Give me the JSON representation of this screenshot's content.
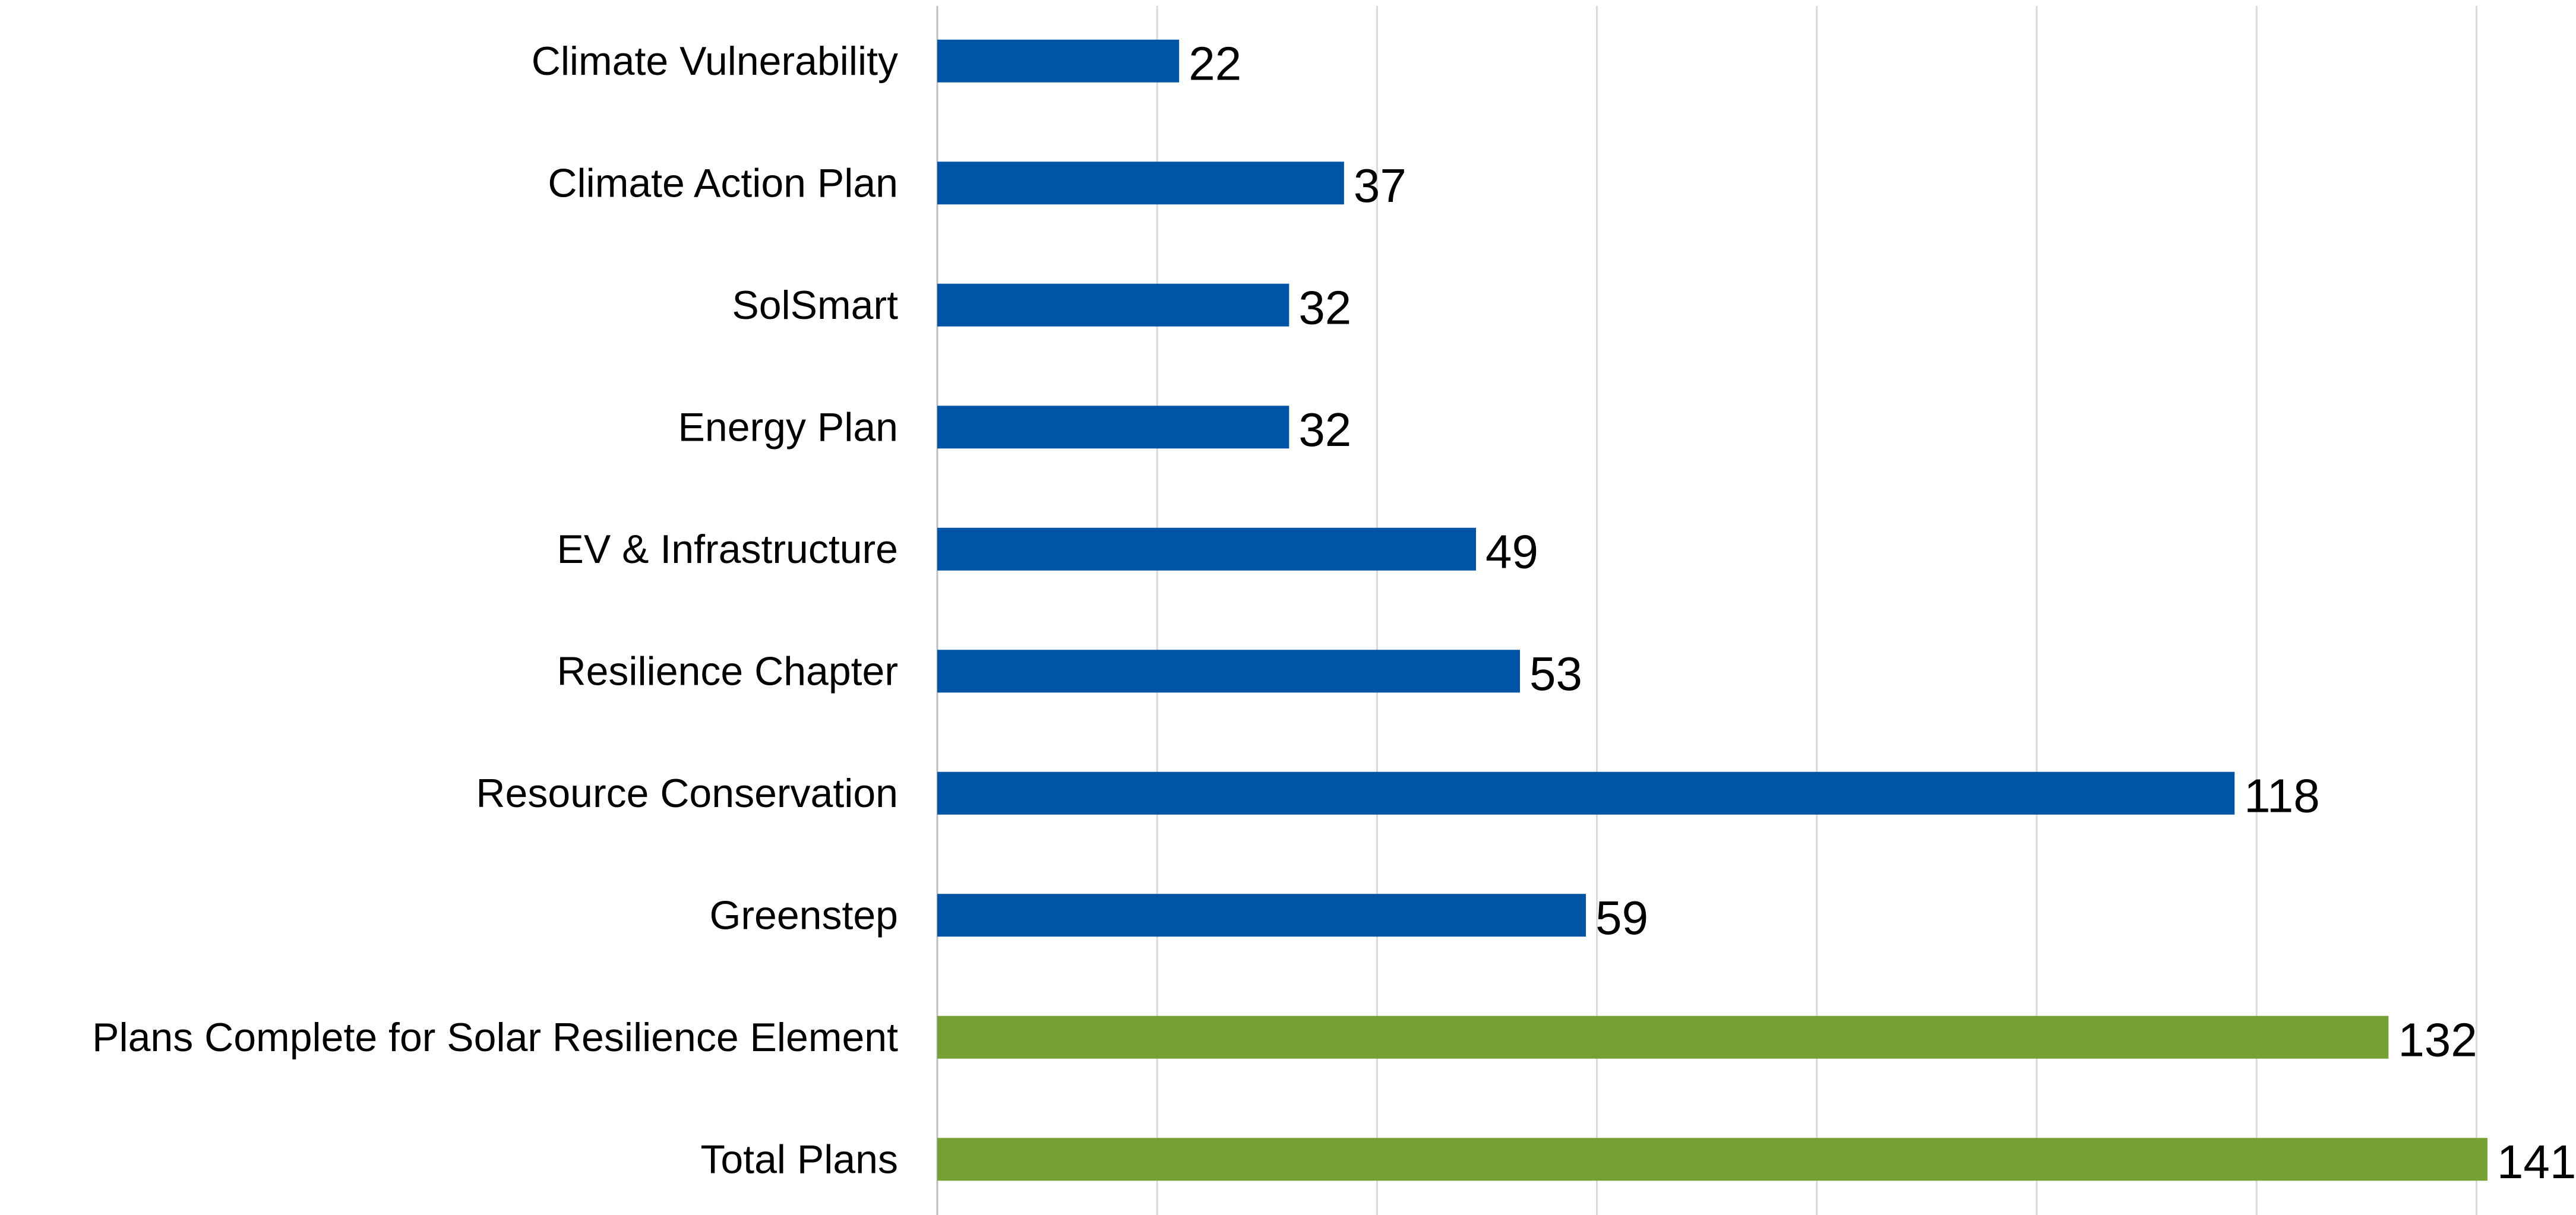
{
  "chart_data": {
    "type": "bar",
    "orientation": "horizontal",
    "title": "",
    "xlabel": "",
    "ylabel": "",
    "xlim": [
      0,
      160
    ],
    "grid": true,
    "legend": "none",
    "categories": [
      "Climate Vulnerability",
      "Climate Action Plan",
      "SolSmart",
      "Energy Plan",
      "EV & Infrastructure",
      "Resilience Chapter",
      "Resource Conservation",
      "Greenstep",
      "Plans Complete for Solar Resilience Element",
      "Total Plans"
    ],
    "values": [
      22,
      37,
      32,
      32,
      49,
      53,
      118,
      59,
      132,
      141
    ],
    "bar_colors": [
      "#0054a6",
      "#0054a6",
      "#0054a6",
      "#0054a6",
      "#0054a6",
      "#0054a6",
      "#0054a6",
      "#0054a6",
      "#76a033",
      "#76a033"
    ]
  },
  "colors": {
    "grid": "#d9d9d9",
    "axis": "#bfbfbf",
    "text": "#000000"
  }
}
